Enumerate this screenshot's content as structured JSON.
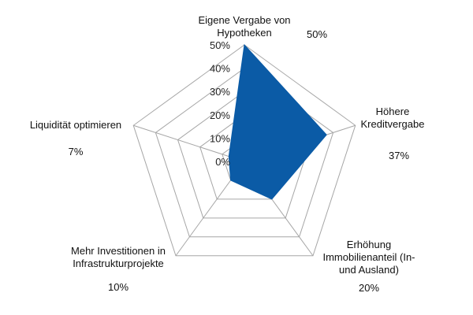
{
  "chart_data": {
    "type": "radar",
    "categories": [
      [
        "Eigene Vergabe von",
        "Hypotheken"
      ],
      [
        "Höhere",
        "Kreditvergabe"
      ],
      [
        "Erhöhung",
        "Immobilienanteil (In-",
        "und Ausland)"
      ],
      [
        "Mehr Investitionen in",
        "Infrastrukturprojekte"
      ],
      [
        "Liquidität optimieren"
      ]
    ],
    "values": [
      50,
      37,
      20,
      10,
      7
    ],
    "value_labels": [
      "50%",
      "37%",
      "20%",
      "10%",
      "7%"
    ],
    "rlim": [
      0,
      50
    ],
    "ticks": [
      0,
      10,
      20,
      30,
      40,
      50
    ],
    "tick_labels": [
      "0%",
      "10%",
      "20%",
      "30%",
      "40%",
      "50%"
    ],
    "grid": true,
    "legend": "none",
    "colors": {
      "series": "#0b5ba6",
      "grid": "#a6a6a6"
    }
  }
}
